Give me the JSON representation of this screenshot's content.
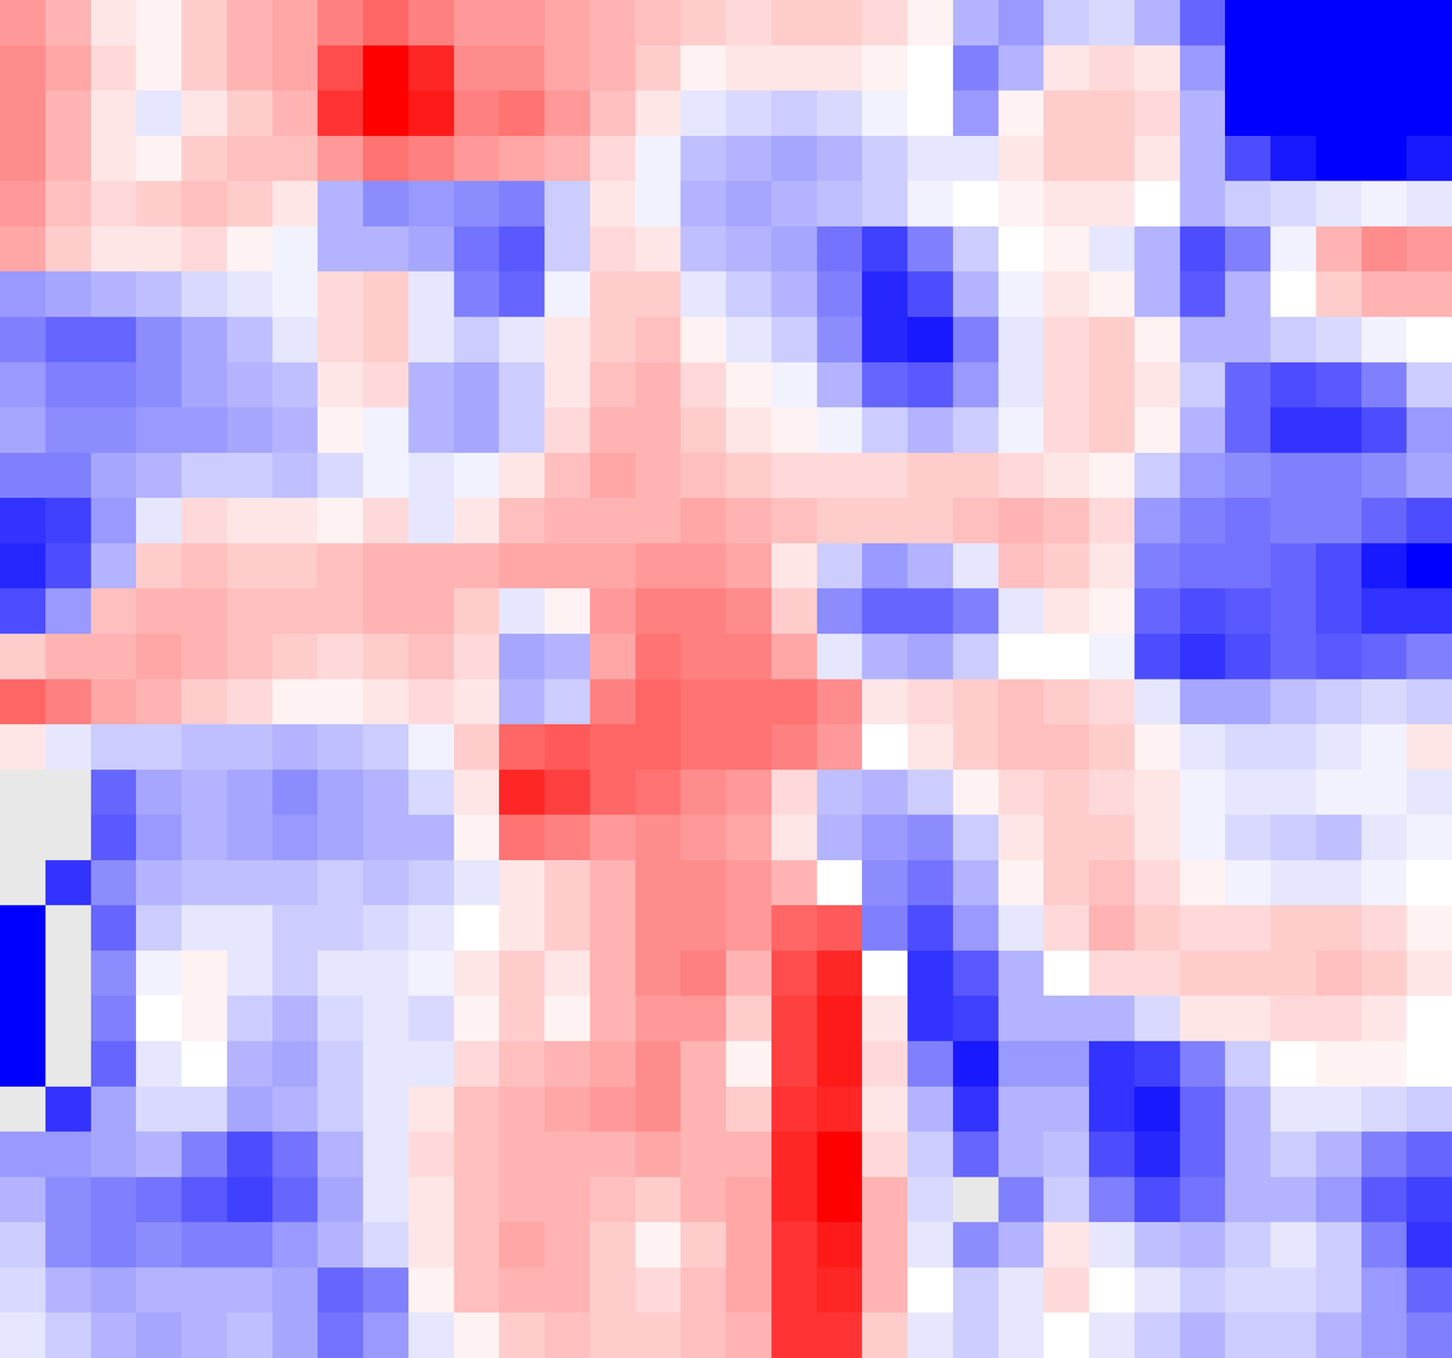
{
  "chart_data": {
    "type": "heatmap",
    "tick_labels": false,
    "zlim": [
      -1,
      1
    ],
    "z": [
      [
        0.4,
        0.3,
        0.1,
        0.05,
        0.2,
        0.3,
        0.35,
        0.5,
        0.6,
        0.5,
        0.4,
        0.4,
        0.35,
        0.3,
        0.25,
        0.2,
        0.15,
        0.2,
        0.2,
        0.15,
        0.05,
        -0.3,
        -0.4,
        -0.2,
        -0.15,
        -0.3,
        -0.6,
        -1,
        -1,
        -1,
        -1,
        -1
      ],
      [
        0.45,
        0.35,
        0.15,
        0.05,
        0.2,
        0.3,
        0.35,
        0.7,
        1,
        0.85,
        0.45,
        0.45,
        0.35,
        0.3,
        0.2,
        0.05,
        0.1,
        0.1,
        0.1,
        0.05,
        0,
        -0.5,
        -0.3,
        0.1,
        0.15,
        0.1,
        -0.4,
        -1,
        -1,
        -1,
        -1,
        -1
      ],
      [
        0.45,
        0.3,
        0.1,
        -0.1,
        0.1,
        0.2,
        0.3,
        0.8,
        1,
        0.9,
        0.5,
        0.55,
        0.4,
        0.25,
        0.1,
        -0.1,
        -0.15,
        -0.2,
        -0.15,
        -0.05,
        0,
        -0.4,
        0.05,
        0.2,
        0.2,
        0.15,
        -0.3,
        -1,
        -1,
        -1,
        -1,
        -1
      ],
      [
        0.45,
        0.3,
        0.1,
        0.05,
        0.2,
        0.25,
        0.25,
        0.4,
        0.55,
        0.5,
        0.4,
        0.35,
        0.3,
        0.15,
        -0.05,
        -0.25,
        -0.3,
        -0.35,
        -0.3,
        -0.2,
        -0.1,
        -0.1,
        0.1,
        0.2,
        0.2,
        0.1,
        -0.3,
        -0.7,
        -0.9,
        -1,
        -1,
        -0.9
      ],
      [
        0.4,
        0.25,
        0.15,
        0.2,
        0.25,
        0.2,
        0.1,
        -0.3,
        -0.45,
        -0.4,
        -0.45,
        -0.5,
        -0.2,
        0.1,
        -0.05,
        -0.3,
        -0.35,
        -0.3,
        -0.25,
        -0.2,
        -0.05,
        0,
        0.05,
        0.1,
        0.1,
        0,
        -0.3,
        -0.2,
        -0.15,
        -0.1,
        -0.05,
        -0.1
      ],
      [
        0.35,
        0.2,
        0.1,
        0.1,
        0.15,
        0.05,
        -0.05,
        -0.3,
        -0.3,
        -0.35,
        -0.55,
        -0.65,
        -0.2,
        0.15,
        0.1,
        -0.25,
        -0.3,
        -0.35,
        -0.55,
        -0.75,
        -0.5,
        -0.2,
        0,
        0.05,
        -0.1,
        -0.3,
        -0.7,
        -0.5,
        -0.05,
        0.3,
        0.45,
        0.4
      ],
      [
        -0.4,
        -0.35,
        -0.3,
        -0.25,
        -0.15,
        -0.1,
        -0.05,
        0.15,
        0.2,
        -0.1,
        -0.5,
        -0.6,
        -0.05,
        0.2,
        0.2,
        -0.1,
        -0.2,
        -0.3,
        -0.5,
        -0.85,
        -0.7,
        -0.3,
        -0.05,
        0.1,
        0.05,
        -0.3,
        -0.65,
        -0.3,
        0,
        0.2,
        0.3,
        0.3
      ],
      [
        -0.5,
        -0.6,
        -0.6,
        -0.45,
        -0.35,
        -0.25,
        -0.1,
        0.15,
        0.2,
        -0.1,
        -0.2,
        -0.1,
        0.1,
        0.2,
        0.25,
        0.05,
        -0.1,
        -0.2,
        -0.45,
        -0.85,
        -0.9,
        -0.5,
        -0.1,
        0.15,
        0.2,
        0.05,
        -0.3,
        -0.3,
        -0.2,
        -0.15,
        -0.05,
        0
      ],
      [
        -0.4,
        -0.5,
        -0.5,
        -0.45,
        -0.35,
        -0.3,
        -0.25,
        0.1,
        0.15,
        -0.3,
        -0.35,
        -0.2,
        0.1,
        0.25,
        0.3,
        0.15,
        0.05,
        -0.05,
        -0.3,
        -0.6,
        -0.65,
        -0.4,
        -0.1,
        0.15,
        0.2,
        0.1,
        -0.2,
        -0.6,
        -0.7,
        -0.65,
        -0.5,
        -0.2
      ],
      [
        -0.35,
        -0.45,
        -0.45,
        -0.4,
        -0.4,
        -0.35,
        -0.3,
        0.05,
        -0.05,
        -0.3,
        -0.35,
        -0.2,
        0.15,
        0.3,
        0.3,
        0.2,
        0.1,
        0.05,
        -0.05,
        -0.2,
        -0.3,
        -0.2,
        -0.05,
        0.15,
        0.2,
        0.05,
        -0.3,
        -0.6,
        -0.8,
        -0.8,
        -0.7,
        -0.4
      ],
      [
        -0.5,
        -0.5,
        -0.35,
        -0.3,
        -0.2,
        -0.2,
        -0.25,
        -0.15,
        -0.05,
        -0.1,
        -0.05,
        0.1,
        0.25,
        0.35,
        0.3,
        0.25,
        0.2,
        0.15,
        0.15,
        0.15,
        0.2,
        0.2,
        0.15,
        0.1,
        0.05,
        -0.2,
        -0.4,
        -0.45,
        -0.5,
        -0.5,
        -0.45,
        -0.35
      ],
      [
        -0.8,
        -0.75,
        -0.4,
        -0.1,
        0.15,
        0.1,
        0.1,
        0.05,
        0.15,
        -0.1,
        0.1,
        0.25,
        0.3,
        0.3,
        0.3,
        0.35,
        0.3,
        0.25,
        0.2,
        0.2,
        0.2,
        0.25,
        0.3,
        0.25,
        0.15,
        -0.4,
        -0.5,
        -0.55,
        -0.5,
        -0.5,
        -0.6,
        -0.7
      ],
      [
        -0.85,
        -0.7,
        -0.3,
        0.2,
        0.25,
        0.2,
        0.2,
        0.25,
        0.3,
        0.3,
        0.3,
        0.35,
        0.35,
        0.35,
        0.4,
        0.4,
        0.35,
        0.1,
        -0.2,
        -0.4,
        -0.3,
        -0.1,
        0.25,
        0.2,
        0.1,
        -0.5,
        -0.55,
        -0.55,
        -0.6,
        -0.7,
        -0.9,
        -1
      ],
      [
        -0.7,
        -0.4,
        0.25,
        0.3,
        0.3,
        0.25,
        0.25,
        0.25,
        0.3,
        0.3,
        0.2,
        -0.1,
        0.05,
        0.4,
        0.5,
        0.5,
        0.45,
        0.2,
        -0.45,
        -0.6,
        -0.6,
        -0.5,
        -0.1,
        0.1,
        0.05,
        -0.6,
        -0.7,
        -0.65,
        -0.6,
        -0.7,
        -0.8,
        -0.8
      ],
      [
        0.2,
        0.3,
        0.3,
        0.35,
        0.3,
        0.25,
        0.2,
        0.15,
        0.2,
        0.25,
        0.15,
        -0.35,
        -0.3,
        0.35,
        0.55,
        0.5,
        0.5,
        0.35,
        -0.1,
        -0.3,
        -0.35,
        -0.2,
        0,
        0,
        -0.05,
        -0.7,
        -0.8,
        -0.7,
        -0.6,
        -0.65,
        -0.6,
        -0.5
      ],
      [
        0.6,
        0.5,
        0.35,
        0.3,
        0.2,
        0.15,
        0.05,
        0.05,
        0.1,
        0.15,
        0.1,
        -0.3,
        -0.2,
        0.5,
        0.6,
        0.55,
        0.55,
        0.55,
        0.45,
        0.1,
        0.15,
        0.2,
        0.25,
        0.2,
        0.15,
        -0.1,
        -0.35,
        -0.35,
        -0.25,
        -0.2,
        -0.15,
        -0.2
      ],
      [
        0.1,
        -0.1,
        -0.2,
        -0.2,
        -0.25,
        -0.25,
        -0.3,
        -0.25,
        -0.2,
        -0.05,
        0.2,
        0.6,
        0.65,
        0.6,
        0.6,
        0.55,
        0.55,
        0.5,
        0.4,
        0,
        0.1,
        0.2,
        0.25,
        0.25,
        0.2,
        0.05,
        -0.1,
        -0.15,
        -0.15,
        -0.1,
        -0.05,
        0.1
      ],
      [
        null,
        null,
        -0.6,
        -0.35,
        -0.3,
        -0.35,
        -0.45,
        -0.35,
        -0.3,
        -0.15,
        0.1,
        0.85,
        0.75,
        0.6,
        0.55,
        0.45,
        0.4,
        0.15,
        -0.25,
        -0.3,
        -0.2,
        0.05,
        0.15,
        0.2,
        0.15,
        0.1,
        -0.05,
        -0.1,
        -0.1,
        -0.05,
        -0.05,
        -0.1
      ],
      [
        null,
        null,
        -0.65,
        -0.4,
        -0.3,
        -0.35,
        -0.4,
        -0.35,
        -0.3,
        -0.3,
        0.05,
        0.55,
        0.5,
        0.4,
        0.45,
        0.4,
        0.35,
        0.1,
        -0.3,
        -0.4,
        -0.45,
        -0.2,
        0.1,
        0.2,
        0.2,
        0.1,
        -0.05,
        -0.15,
        -0.2,
        -0.25,
        -0.1,
        -0.05
      ],
      [
        null,
        -0.8,
        -0.45,
        -0.3,
        -0.25,
        -0.25,
        -0.25,
        -0.2,
        -0.25,
        -0.2,
        -0.1,
        0.1,
        0.2,
        0.3,
        0.45,
        0.45,
        0.4,
        0.3,
        0,
        -0.45,
        -0.55,
        -0.3,
        0.05,
        0.2,
        0.25,
        0.15,
        0.05,
        -0.05,
        -0.1,
        -0.1,
        -0.05,
        0
      ],
      [
        -1,
        null,
        -0.6,
        -0.2,
        -0.1,
        -0.1,
        -0.2,
        -0.2,
        -0.15,
        -0.1,
        0,
        0.1,
        0.2,
        0.3,
        0.45,
        0.45,
        0.4,
        0.6,
        0.65,
        -0.5,
        -0.7,
        -0.4,
        -0.1,
        0.15,
        0.3,
        0.2,
        0.15,
        0.15,
        0.2,
        0.2,
        0.15,
        0.05
      ],
      [
        -1,
        null,
        -0.45,
        -0.05,
        0.05,
        -0.1,
        -0.2,
        -0.1,
        -0.1,
        -0.05,
        0.1,
        0.2,
        0.1,
        0.3,
        0.45,
        0.5,
        0.3,
        0.7,
        0.85,
        0,
        -0.8,
        -0.65,
        -0.3,
        0,
        0.15,
        0.15,
        0.2,
        0.2,
        0.2,
        0.25,
        0.2,
        0.1
      ],
      [
        -1,
        null,
        -0.5,
        0,
        0.05,
        -0.2,
        -0.3,
        -0.15,
        -0.1,
        -0.15,
        0.05,
        0.2,
        0.05,
        0.3,
        0.4,
        0.4,
        0.2,
        0.75,
        0.9,
        0.1,
        -0.8,
        -0.75,
        -0.3,
        -0.3,
        -0.3,
        -0.15,
        0.1,
        0.1,
        0.15,
        0.15,
        0.1,
        0
      ],
      [
        -1,
        null,
        -0.6,
        -0.1,
        0,
        -0.3,
        -0.35,
        -0.2,
        -0.1,
        -0.1,
        0.15,
        0.25,
        0.3,
        0.35,
        0.45,
        0.3,
        0.05,
        0.75,
        0.9,
        0.15,
        -0.5,
        -0.9,
        -0.4,
        -0.4,
        -0.8,
        -0.75,
        -0.5,
        -0.2,
        0,
        0.05,
        0.05,
        0
      ],
      [
        null,
        -0.8,
        -0.35,
        -0.15,
        -0.15,
        -0.35,
        -0.3,
        -0.2,
        -0.1,
        0.1,
        0.25,
        0.3,
        0.35,
        0.4,
        0.45,
        0.3,
        0.2,
        0.8,
        0.85,
        0.1,
        -0.3,
        -0.8,
        -0.3,
        -0.3,
        -0.8,
        -0.9,
        -0.6,
        -0.3,
        -0.1,
        -0.1,
        -0.15,
        -0.2
      ],
      [
        -0.4,
        -0.4,
        -0.35,
        -0.3,
        -0.5,
        -0.7,
        -0.55,
        -0.3,
        -0.1,
        0.15,
        0.25,
        0.3,
        0.3,
        0.3,
        0.35,
        0.3,
        0.3,
        0.85,
        1,
        0.15,
        -0.2,
        -0.6,
        -0.3,
        -0.25,
        -0.7,
        -0.85,
        -0.6,
        -0.3,
        -0.2,
        -0.3,
        -0.5,
        -0.6
      ],
      [
        -0.3,
        -0.45,
        -0.5,
        -0.55,
        -0.65,
        -0.75,
        -0.6,
        -0.35,
        -0.1,
        0.1,
        0.25,
        0.3,
        0.3,
        0.25,
        0.2,
        0.3,
        0.35,
        0.85,
        1,
        0.3,
        -0.15,
        null,
        -0.5,
        -0.2,
        -0.5,
        -0.7,
        -0.55,
        -0.3,
        -0.3,
        -0.4,
        -0.65,
        -0.75
      ],
      [
        -0.2,
        -0.45,
        -0.5,
        -0.45,
        -0.5,
        -0.5,
        -0.4,
        -0.3,
        -0.15,
        0.1,
        0.25,
        0.35,
        0.3,
        0.2,
        0.05,
        0.2,
        0.35,
        0.8,
        0.9,
        0.3,
        -0.1,
        -0.45,
        -0.3,
        0.1,
        -0.1,
        -0.25,
        -0.3,
        -0.2,
        -0.1,
        -0.2,
        -0.5,
        -0.8
      ],
      [
        -0.15,
        -0.3,
        -0.35,
        -0.3,
        -0.3,
        -0.3,
        -0.35,
        -0.6,
        -0.5,
        0.05,
        0.25,
        0.3,
        0.3,
        0.2,
        0.15,
        0.25,
        0.35,
        0.8,
        0.85,
        0.3,
        0,
        -0.2,
        -0.1,
        0.15,
        0,
        -0.1,
        -0.2,
        -0.15,
        -0.15,
        -0.2,
        -0.4,
        -0.6
      ],
      [
        -0.1,
        -0.2,
        -0.3,
        -0.35,
        -0.3,
        -0.25,
        -0.35,
        -0.55,
        -0.4,
        -0.1,
        0.05,
        0.2,
        0.25,
        0.2,
        0.2,
        0.25,
        0.3,
        0.8,
        0.8,
        0.2,
        -0.1,
        -0.2,
        -0.1,
        0,
        -0.1,
        -0.2,
        -0.3,
        -0.2,
        -0.2,
        -0.3,
        -0.4,
        -0.5
      ]
    ]
  }
}
